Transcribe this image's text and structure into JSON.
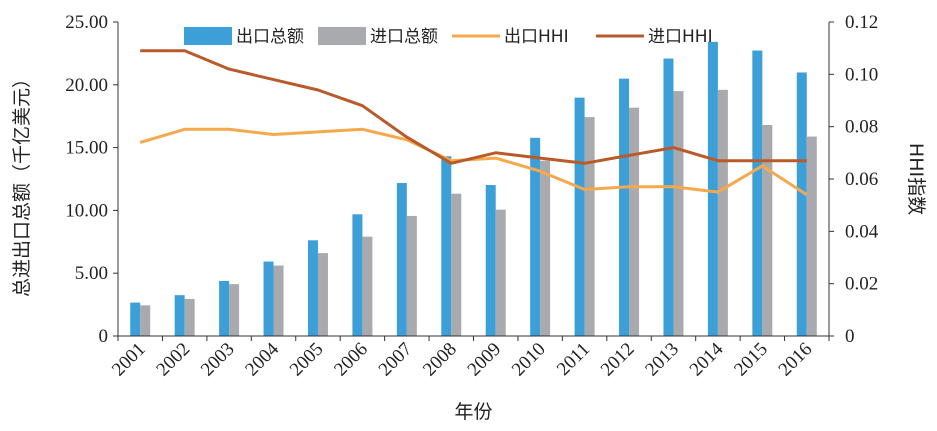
{
  "chart_data": {
    "type": "bar",
    "categories": [
      "2001",
      "2002",
      "2003",
      "2004",
      "2005",
      "2006",
      "2007",
      "2008",
      "2009",
      "2010",
      "2011",
      "2012",
      "2013",
      "2014",
      "2015",
      "2016"
    ],
    "series": [
      {
        "name": "出口总额",
        "type": "bar",
        "axis": "left",
        "color": "#3d9fd8",
        "values": [
          2.66,
          3.25,
          4.38,
          5.93,
          7.62,
          9.69,
          12.18,
          14.31,
          12.02,
          15.78,
          18.98,
          20.49,
          22.09,
          23.42,
          22.73,
          20.98
        ]
      },
      {
        "name": "进口总额",
        "type": "bar",
        "axis": "left",
        "color": "#a8aaad",
        "values": [
          2.44,
          2.95,
          4.13,
          5.61,
          6.6,
          7.91,
          9.56,
          11.33,
          10.06,
          13.96,
          17.43,
          18.18,
          19.5,
          19.6,
          16.8,
          15.88
        ]
      },
      {
        "name": "出口HHI",
        "type": "line",
        "axis": "right",
        "color": "#f5a94c",
        "values": [
          0.074,
          0.079,
          0.079,
          0.077,
          0.078,
          0.079,
          0.075,
          0.067,
          0.068,
          0.063,
          0.056,
          0.057,
          0.057,
          0.055,
          0.065,
          0.054
        ]
      },
      {
        "name": "进口HHI",
        "type": "line",
        "axis": "right",
        "color": "#b95a2a",
        "values": [
          0.109,
          0.109,
          0.102,
          0.098,
          0.094,
          0.088,
          0.076,
          0.066,
          0.07,
          0.068,
          0.066,
          0.069,
          0.072,
          0.067,
          0.067,
          0.067
        ]
      }
    ],
    "xlabel": "年份",
    "ylabel": "总进出口总额（千亿美元）",
    "ylabel_right": "HHI指数",
    "ylim": [
      0,
      25
    ],
    "ylim_right": [
      0,
      0.12
    ],
    "yticks": [
      "0",
      "5.00",
      "10.00",
      "15.00",
      "20.00",
      "25.00"
    ],
    "yticks_right": [
      "0",
      "0.02",
      "0.04",
      "0.06",
      "0.08",
      "0.10",
      "0.12"
    ],
    "grid": false,
    "legend_position": "top"
  }
}
